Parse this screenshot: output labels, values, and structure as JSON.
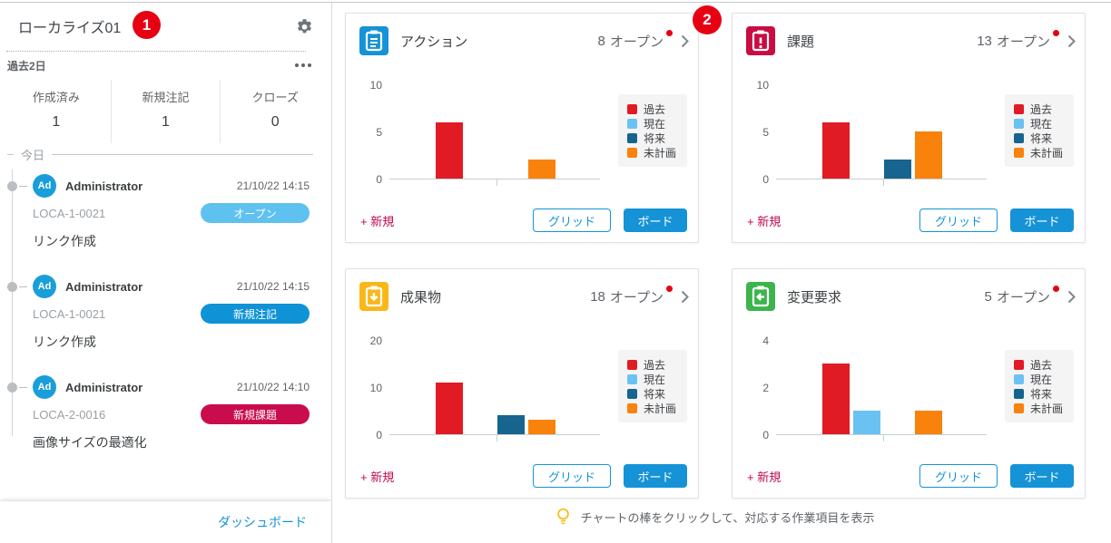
{
  "annotations": {
    "step1": "1",
    "step2": "2"
  },
  "sidebar": {
    "title": "ローカライズ01",
    "period_label": "過去2日",
    "stats": [
      {
        "label": "作成済み",
        "value": "1"
      },
      {
        "label": "新規注記",
        "value": "1"
      },
      {
        "label": "クローズ",
        "value": "0"
      }
    ],
    "timeline_header": "今日",
    "events": [
      {
        "avatar": "Ad",
        "user": "Administrator",
        "time": "21/10/22 14:15",
        "item": "LOCA-1-0021",
        "badge": "オープン",
        "badge_color": "#5ec1f0",
        "desc": "リンク作成"
      },
      {
        "avatar": "Ad",
        "user": "Administrator",
        "time": "21/10/22 14:15",
        "item": "LOCA-1-0021",
        "badge": "新規注記",
        "badge_color": "#0f93d6",
        "desc": "リンク作成"
      },
      {
        "avatar": "Ad",
        "user": "Administrator",
        "time": "21/10/22 14:10",
        "item": "LOCA-2-0016",
        "badge": "新規課題",
        "badge_color": "#c90c4d",
        "desc": "画像サイズの最適化"
      }
    ],
    "footer_link": "ダッシュボード"
  },
  "cards": [
    {
      "title": "アクション",
      "icon": "clipboard-list",
      "icon_color": "#1593d6",
      "open_count": "8",
      "open_label": "オープン",
      "new_label": "+ 新規",
      "grid_label": "グリッド",
      "board_label": "ボード"
    },
    {
      "title": "課題",
      "icon": "clipboard-exclamation",
      "icon_color": "#c90c44",
      "open_count": "13",
      "open_label": "オープン",
      "new_label": "+ 新規",
      "grid_label": "グリッド",
      "board_label": "ボード"
    },
    {
      "title": "成果物",
      "icon": "clipboard-arrow-down",
      "icon_color": "#f9b71a",
      "open_count": "18",
      "open_label": "オープン",
      "new_label": "+ 新規",
      "grid_label": "グリッド",
      "board_label": "ボード"
    },
    {
      "title": "変更要求",
      "icon": "clipboard-arrow-left",
      "icon_color": "#3db44d",
      "open_count": "5",
      "open_label": "オープン",
      "new_label": "+ 新規",
      "grid_label": "グリッド",
      "board_label": "ボード"
    }
  ],
  "legend": {
    "position": "right",
    "items": [
      {
        "label": "過去",
        "color": "#e01b24"
      },
      {
        "label": "現在",
        "color": "#6ac2f2"
      },
      {
        "label": "将来",
        "color": "#17648f"
      },
      {
        "label": "未計画",
        "color": "#f8820b"
      }
    ]
  },
  "chart_data": [
    {
      "type": "bar",
      "card": "アクション",
      "total_open": 8,
      "ylim": [
        0,
        10
      ],
      "yticks": [
        0,
        5,
        10
      ],
      "grid": false,
      "bars": [
        {
          "series": "過去",
          "value": 6,
          "slot": 0
        },
        {
          "series": "未計画",
          "value": 2,
          "slot": 3
        }
      ]
    },
    {
      "type": "bar",
      "card": "課題",
      "total_open": 13,
      "ylim": [
        0,
        10
      ],
      "yticks": [
        0,
        5,
        10
      ],
      "grid": false,
      "bars": [
        {
          "series": "過去",
          "value": 6,
          "slot": 0
        },
        {
          "series": "将来",
          "value": 2,
          "slot": 2
        },
        {
          "series": "未計画",
          "value": 5,
          "slot": 3
        }
      ]
    },
    {
      "type": "bar",
      "card": "成果物",
      "total_open": 18,
      "ylim": [
        0,
        20
      ],
      "yticks": [
        0,
        10,
        20
      ],
      "grid": false,
      "bars": [
        {
          "series": "過去",
          "value": 11,
          "slot": 0
        },
        {
          "series": "将来",
          "value": 4,
          "slot": 2
        },
        {
          "series": "未計画",
          "value": 3,
          "slot": 3
        }
      ]
    },
    {
      "type": "bar",
      "card": "変更要求",
      "total_open": 5,
      "ylim": [
        0,
        4
      ],
      "yticks": [
        0,
        2,
        4
      ],
      "grid": false,
      "bars": [
        {
          "series": "過去",
          "value": 3,
          "slot": 0
        },
        {
          "series": "現在",
          "value": 1,
          "slot": 1
        },
        {
          "series": "未計画",
          "value": 1,
          "slot": 3
        }
      ]
    }
  ],
  "hint": {
    "text": "チャートの棒をクリックして、対応する作業項目を表示"
  }
}
